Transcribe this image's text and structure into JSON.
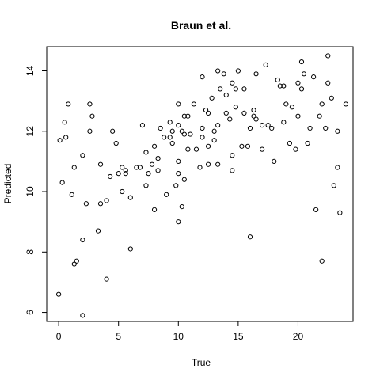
{
  "chart_data": {
    "type": "scatter",
    "title": "Braun et al.",
    "xlabel": "True",
    "ylabel": "Predicted",
    "xlim": [
      -1,
      24.6
    ],
    "ylim": [
      5.7,
      14.8
    ],
    "xticks": [
      0,
      5,
      10,
      15,
      20
    ],
    "yticks": [
      6,
      8,
      10,
      12,
      14
    ],
    "grid": false,
    "points": [
      [
        0.0,
        6.6
      ],
      [
        0.1,
        11.7
      ],
      [
        0.3,
        10.3
      ],
      [
        0.5,
        12.3
      ],
      [
        0.6,
        11.8
      ],
      [
        0.8,
        12.9
      ],
      [
        1.1,
        9.9
      ],
      [
        1.3,
        10.8
      ],
      [
        1.3,
        7.6
      ],
      [
        1.5,
        7.7
      ],
      [
        2.0,
        8.4
      ],
      [
        2.0,
        5.9
      ],
      [
        2.0,
        11.2
      ],
      [
        2.3,
        9.6
      ],
      [
        2.6,
        12.9
      ],
      [
        2.6,
        12.0
      ],
      [
        2.8,
        12.5
      ],
      [
        3.3,
        8.7
      ],
      [
        3.5,
        9.6
      ],
      [
        3.5,
        10.9
      ],
      [
        4.0,
        7.1
      ],
      [
        4.0,
        9.7
      ],
      [
        4.3,
        10.5
      ],
      [
        4.5,
        12.0
      ],
      [
        4.8,
        11.6
      ],
      [
        5.0,
        10.6
      ],
      [
        5.3,
        10.8
      ],
      [
        5.3,
        10.0
      ],
      [
        5.6,
        10.6
      ],
      [
        5.6,
        10.7
      ],
      [
        6.0,
        9.8
      ],
      [
        6.0,
        8.1
      ],
      [
        6.5,
        10.8
      ],
      [
        6.8,
        10.8
      ],
      [
        7.0,
        12.2
      ],
      [
        7.3,
        10.2
      ],
      [
        7.3,
        11.3
      ],
      [
        7.5,
        10.6
      ],
      [
        7.8,
        10.9
      ],
      [
        8.0,
        9.4
      ],
      [
        8.0,
        11.5
      ],
      [
        8.3,
        11.1
      ],
      [
        8.3,
        10.7
      ],
      [
        8.5,
        12.1
      ],
      [
        8.8,
        11.8
      ],
      [
        9.0,
        9.9
      ],
      [
        9.3,
        12.3
      ],
      [
        9.3,
        11.8
      ],
      [
        9.5,
        11.6
      ],
      [
        9.5,
        12.0
      ],
      [
        9.8,
        10.2
      ],
      [
        10.0,
        10.6
      ],
      [
        10.0,
        11.0
      ],
      [
        10.0,
        12.2
      ],
      [
        10.0,
        12.9
      ],
      [
        10.0,
        9.0
      ],
      [
        10.3,
        9.5
      ],
      [
        10.3,
        12.0
      ],
      [
        10.5,
        11.9
      ],
      [
        10.5,
        10.4
      ],
      [
        10.5,
        12.5
      ],
      [
        10.8,
        12.5
      ],
      [
        10.8,
        11.4
      ],
      [
        11.0,
        11.9
      ],
      [
        11.3,
        12.9
      ],
      [
        11.5,
        11.4
      ],
      [
        11.8,
        10.8
      ],
      [
        12.0,
        13.8
      ],
      [
        12.0,
        12.1
      ],
      [
        12.0,
        11.8
      ],
      [
        12.3,
        12.7
      ],
      [
        12.5,
        10.9
      ],
      [
        12.5,
        11.5
      ],
      [
        12.5,
        12.6
      ],
      [
        12.8,
        13.1
      ],
      [
        13.0,
        12.0
      ],
      [
        13.0,
        11.7
      ],
      [
        13.3,
        12.2
      ],
      [
        13.3,
        10.9
      ],
      [
        13.3,
        14.0
      ],
      [
        13.5,
        13.4
      ],
      [
        13.8,
        13.9
      ],
      [
        14.0,
        13.2
      ],
      [
        14.0,
        12.6
      ],
      [
        14.3,
        12.4
      ],
      [
        14.5,
        11.2
      ],
      [
        14.5,
        10.7
      ],
      [
        14.5,
        13.6
      ],
      [
        14.8,
        13.4
      ],
      [
        14.8,
        12.8
      ],
      [
        15.0,
        14.0
      ],
      [
        15.3,
        11.5
      ],
      [
        15.5,
        13.4
      ],
      [
        15.5,
        12.6
      ],
      [
        15.8,
        11.5
      ],
      [
        16.0,
        8.5
      ],
      [
        16.0,
        12.1
      ],
      [
        16.3,
        12.5
      ],
      [
        16.3,
        12.7
      ],
      [
        16.5,
        12.4
      ],
      [
        16.5,
        13.9
      ],
      [
        17.0,
        12.2
      ],
      [
        17.0,
        11.4
      ],
      [
        17.3,
        14.2
      ],
      [
        17.5,
        12.2
      ],
      [
        17.8,
        12.1
      ],
      [
        18.0,
        11.0
      ],
      [
        18.3,
        13.7
      ],
      [
        18.5,
        13.5
      ],
      [
        18.8,
        13.5
      ],
      [
        18.8,
        12.3
      ],
      [
        19.0,
        12.9
      ],
      [
        19.3,
        11.6
      ],
      [
        19.5,
        12.8
      ],
      [
        19.8,
        11.4
      ],
      [
        20.0,
        13.6
      ],
      [
        20.0,
        12.5
      ],
      [
        20.3,
        14.3
      ],
      [
        20.3,
        13.4
      ],
      [
        20.5,
        13.9
      ],
      [
        20.8,
        11.6
      ],
      [
        21.0,
        12.1
      ],
      [
        21.3,
        13.8
      ],
      [
        21.5,
        9.4
      ],
      [
        21.8,
        12.5
      ],
      [
        22.0,
        7.7
      ],
      [
        22.0,
        12.9
      ],
      [
        22.3,
        12.1
      ],
      [
        22.5,
        14.5
      ],
      [
        22.5,
        13.6
      ],
      [
        22.8,
        13.1
      ],
      [
        23.0,
        10.2
      ],
      [
        23.3,
        10.8
      ],
      [
        23.3,
        12.0
      ],
      [
        23.5,
        9.3
      ],
      [
        24.0,
        12.9
      ]
    ]
  }
}
